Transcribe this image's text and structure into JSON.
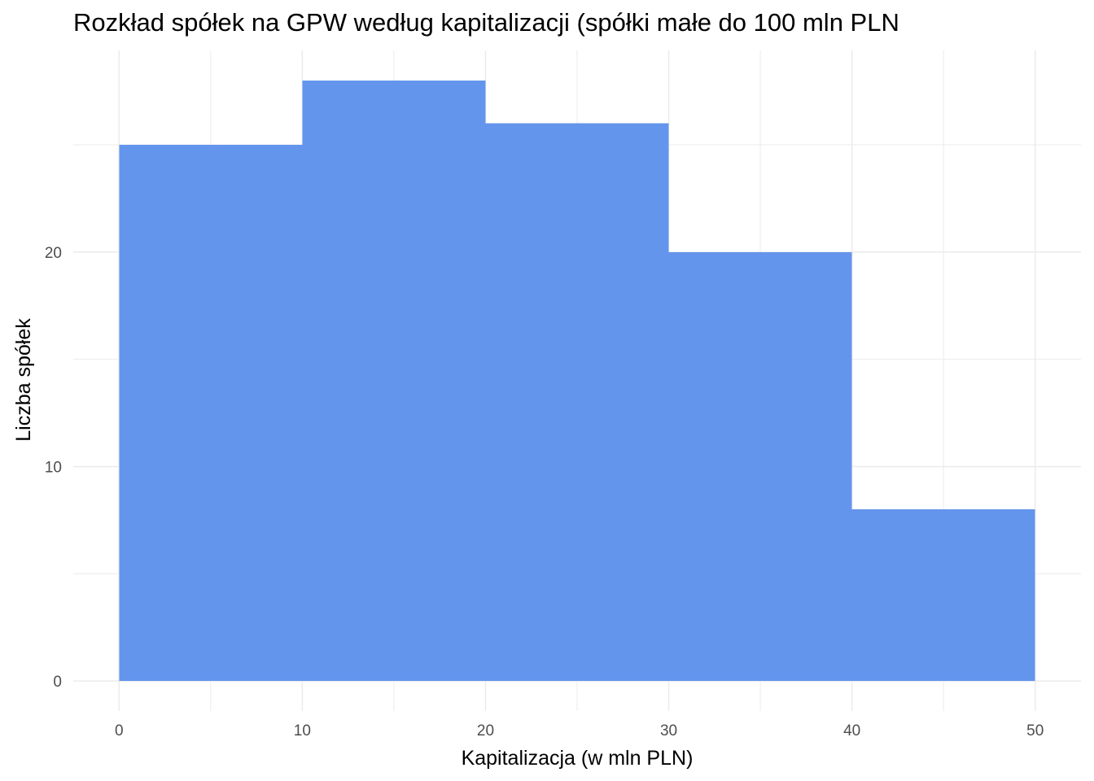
{
  "chart_data": {
    "type": "bar",
    "title": "Rozkład spółek na GPW według kapitalizacji (spółki małe do 100 mln PLN",
    "xlabel": "Kapitalizacja (w mln PLN)",
    "ylabel": "Liczba spółek",
    "bins": [
      {
        "x_start": 0,
        "x_end": 10,
        "count": 25
      },
      {
        "x_start": 10,
        "x_end": 20,
        "count": 28
      },
      {
        "x_start": 20,
        "x_end": 30,
        "count": 26
      },
      {
        "x_start": 30,
        "x_end": 40,
        "count": 20
      },
      {
        "x_start": 40,
        "x_end": 50,
        "count": 8
      }
    ],
    "x_ticks": [
      0,
      10,
      20,
      30,
      40,
      50
    ],
    "y_ticks": [
      0,
      10,
      20
    ],
    "xlim": [
      -2.5,
      52.5
    ],
    "ylim": [
      -1.4,
      29.4
    ],
    "bar_color": "#6495ED",
    "grid": true,
    "grid_color": "#ebebeb",
    "legend": "none"
  }
}
